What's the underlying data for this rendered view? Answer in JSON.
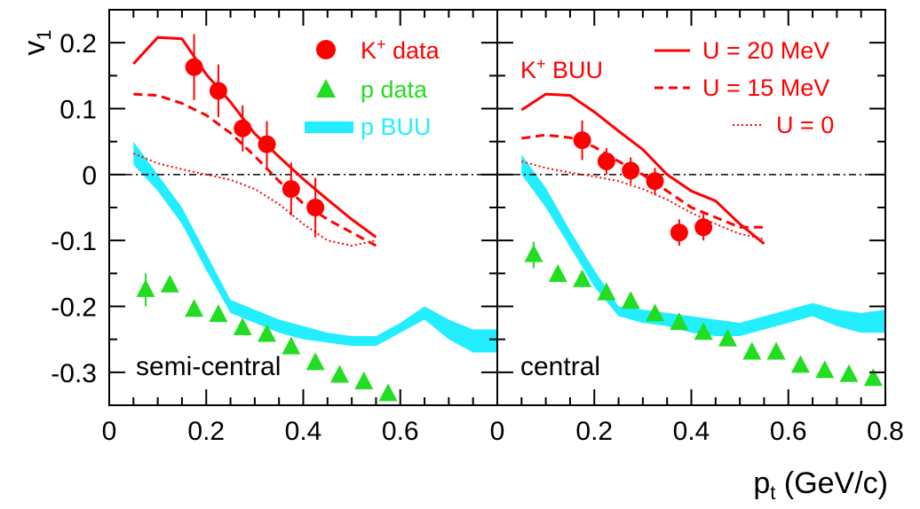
{
  "chart_data": {
    "type": "scatter",
    "y_axis_label": "v",
    "y_axis_subscript": "1",
    "x_axis_label": "p",
    "x_axis_subscript": "t",
    "x_axis_unit": " (GeV/c)",
    "ylim": [
      -0.35,
      0.25
    ],
    "xlim": [
      0,
      0.8
    ],
    "y_ticks": [
      "0.2",
      "0.1",
      "0",
      "-0.1",
      "-0.2",
      "-0.3"
    ],
    "y_tick_values": [
      0.2,
      0.1,
      0,
      -0.1,
      -0.2,
      -0.3
    ],
    "x_ticks_left": [
      "0",
      "0.2",
      "0.4",
      "0.6"
    ],
    "x_tick_values_left": [
      0,
      0.2,
      0.4,
      0.6
    ],
    "x_ticks_right": [
      "0",
      "0.2",
      "0.4",
      "0.6",
      "0.8"
    ],
    "x_tick_values_right": [
      0,
      0.2,
      0.4,
      0.6,
      0.8
    ],
    "colors": {
      "kaon": "#ff0000",
      "proton": "#22dd22",
      "buu_band": "#22eeff",
      "zero_line": "#000000"
    },
    "legend_left": [
      {
        "marker": "circle",
        "label_main": "K",
        "label_sup": "+",
        "label_rest": " data",
        "color": "#ff0000"
      },
      {
        "marker": "triangle",
        "label_main": "p data",
        "label_sup": "",
        "label_rest": "",
        "color": "#22dd22"
      },
      {
        "marker": "band",
        "label_main": "p BUU",
        "label_sup": "",
        "label_rest": "",
        "color": "#22eeff"
      }
    ],
    "legend_right": [
      {
        "line": "solid",
        "label": "U = 20 MeV"
      },
      {
        "line": "dashed",
        "label": "U = 15 MeV"
      },
      {
        "line": "dotted",
        "label": "U = 0"
      }
    ],
    "kaon_buu_label_main": "K",
    "kaon_buu_label_sup": "+",
    "kaon_buu_label_rest": " BUU",
    "panels": [
      {
        "label": "semi-central",
        "kaon_data": {
          "x": [
            0.175,
            0.225,
            0.275,
            0.325,
            0.375,
            0.425
          ],
          "y": [
            0.163,
            0.127,
            0.07,
            0.046,
            -0.022,
            -0.05
          ],
          "yerr": [
            0.05,
            0.04,
            0.035,
            0.035,
            0.04,
            0.045
          ]
        },
        "proton_data": {
          "x": [
            0.075,
            0.125,
            0.175,
            0.225,
            0.275,
            0.325,
            0.375,
            0.425,
            0.475,
            0.525,
            0.575
          ],
          "y": [
            -0.175,
            -0.168,
            -0.205,
            -0.213,
            -0.233,
            -0.243,
            -0.262,
            -0.286,
            -0.305,
            -0.315,
            -0.333
          ],
          "yerr": [
            0.025,
            0.01,
            0.008,
            0.008,
            0.008,
            0.008,
            0.008,
            0.008,
            0.008,
            0.008,
            0.008
          ]
        },
        "proton_buu": {
          "x": [
            0.05,
            0.1,
            0.15,
            0.2,
            0.25,
            0.3,
            0.35,
            0.4,
            0.45,
            0.5,
            0.55,
            0.6,
            0.65,
            0.7,
            0.75,
            0.8
          ],
          "y_high": [
            0.05,
            0.0,
            -0.05,
            -0.12,
            -0.19,
            -0.205,
            -0.22,
            -0.23,
            -0.24,
            -0.245,
            -0.245,
            -0.225,
            -0.2,
            -0.22,
            -0.235,
            -0.235
          ],
          "y_low": [
            0.015,
            -0.025,
            -0.075,
            -0.145,
            -0.21,
            -0.225,
            -0.24,
            -0.25,
            -0.255,
            -0.26,
            -0.26,
            -0.24,
            -0.22,
            -0.25,
            -0.27,
            -0.27
          ]
        },
        "kaon_u20": {
          "x": [
            0.05,
            0.1,
            0.15,
            0.2,
            0.25,
            0.3,
            0.35,
            0.4,
            0.45,
            0.5,
            0.55
          ],
          "y": [
            0.168,
            0.208,
            0.206,
            0.152,
            0.11,
            0.062,
            0.027,
            -0.007,
            -0.038,
            -0.068,
            -0.095
          ]
        },
        "kaon_u15": {
          "x": [
            0.05,
            0.1,
            0.15,
            0.2,
            0.25,
            0.3,
            0.35,
            0.4,
            0.45,
            0.5,
            0.55
          ],
          "y": [
            0.122,
            0.12,
            0.108,
            0.09,
            0.063,
            0.028,
            -0.01,
            -0.044,
            -0.068,
            -0.088,
            -0.108
          ]
        },
        "kaon_u0": {
          "x": [
            0.05,
            0.1,
            0.15,
            0.2,
            0.25,
            0.3,
            0.35,
            0.4,
            0.45,
            0.5,
            0.55
          ],
          "y": [
            0.032,
            0.017,
            0.008,
            0.0,
            -0.008,
            -0.022,
            -0.045,
            -0.075,
            -0.1,
            -0.108,
            -0.1
          ]
        }
      },
      {
        "label": "central",
        "kaon_data": {
          "x": [
            0.175,
            0.225,
            0.275,
            0.325,
            0.375,
            0.425
          ],
          "y": [
            0.052,
            0.02,
            0.006,
            -0.01,
            -0.088,
            -0.08
          ],
          "yerr": [
            0.03,
            0.02,
            0.02,
            0.02,
            0.02,
            0.02
          ]
        },
        "proton_data": {
          "x": [
            0.075,
            0.125,
            0.175,
            0.225,
            0.275,
            0.325,
            0.375,
            0.425,
            0.475,
            0.525,
            0.575,
            0.625,
            0.675,
            0.725,
            0.775
          ],
          "y": [
            -0.122,
            -0.152,
            -0.16,
            -0.18,
            -0.193,
            -0.212,
            -0.225,
            -0.24,
            -0.25,
            -0.27,
            -0.27,
            -0.29,
            -0.298,
            -0.304,
            -0.31
          ],
          "yerr": [
            0.02,
            0.008,
            0.008,
            0.008,
            0.008,
            0.008,
            0.008,
            0.008,
            0.008,
            0.008,
            0.008,
            0.008,
            0.008,
            0.008,
            0.008
          ]
        },
        "proton_buu": {
          "x": [
            0.05,
            0.1,
            0.15,
            0.2,
            0.25,
            0.3,
            0.35,
            0.4,
            0.45,
            0.5,
            0.55,
            0.6,
            0.65,
            0.7,
            0.75,
            0.8
          ],
          "y_high": [
            0.03,
            -0.02,
            -0.085,
            -0.145,
            -0.2,
            -0.205,
            -0.21,
            -0.215,
            -0.22,
            -0.225,
            -0.215,
            -0.205,
            -0.195,
            -0.205,
            -0.21,
            -0.205
          ],
          "y_low": [
            0.0,
            -0.05,
            -0.11,
            -0.17,
            -0.215,
            -0.225,
            -0.23,
            -0.24,
            -0.245,
            -0.245,
            -0.235,
            -0.225,
            -0.215,
            -0.23,
            -0.24,
            -0.24
          ]
        },
        "kaon_u20": {
          "x": [
            0.05,
            0.1,
            0.15,
            0.2,
            0.25,
            0.3,
            0.35,
            0.4,
            0.45,
            0.5,
            0.55
          ],
          "y": [
            0.098,
            0.122,
            0.12,
            0.095,
            0.066,
            0.038,
            0.0,
            -0.025,
            -0.04,
            -0.075,
            -0.105
          ]
        },
        "kaon_u15": {
          "x": [
            0.05,
            0.1,
            0.15,
            0.2,
            0.25,
            0.3,
            0.35,
            0.4,
            0.45,
            0.5,
            0.55
          ],
          "y": [
            0.055,
            0.06,
            0.056,
            0.042,
            0.02,
            0.0,
            -0.025,
            -0.05,
            -0.065,
            -0.08,
            -0.08
          ]
        },
        "kaon_u0": {
          "x": [
            0.05,
            0.1,
            0.15,
            0.2,
            0.25,
            0.3,
            0.35,
            0.4,
            0.45,
            0.5,
            0.55
          ],
          "y": [
            0.02,
            0.01,
            0.003,
            -0.003,
            -0.01,
            -0.022,
            -0.038,
            -0.058,
            -0.075,
            -0.09,
            -0.098
          ]
        }
      }
    ]
  }
}
